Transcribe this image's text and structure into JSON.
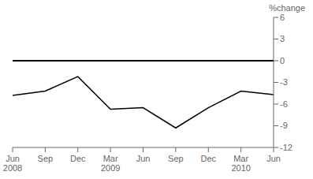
{
  "chart_data": {
    "type": "line",
    "categories": [
      "Jun\n2008",
      "Sep",
      "Dec",
      "Mar\n2009",
      "Jun",
      "Sep",
      "Dec",
      "Mar\n2010",
      "Jun"
    ],
    "values": [
      -4.8,
      -4.2,
      -2.2,
      -6.7,
      -6.5,
      -9.3,
      -6.5,
      -4.2,
      -4.7
    ],
    "ylim": [
      -12,
      6
    ],
    "yticks": [
      -12,
      -9,
      -6,
      -3,
      0,
      3,
      6
    ],
    "y_label": "%change",
    "color": "#000000",
    "grid": false
  }
}
